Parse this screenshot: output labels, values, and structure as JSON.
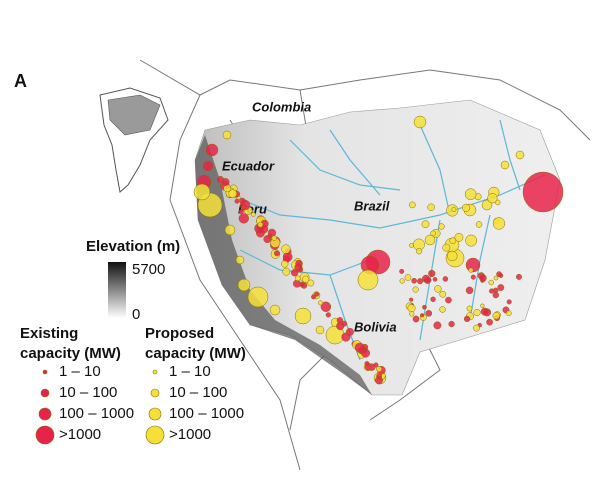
{
  "panel_label": "A",
  "map": {
    "labels": [
      "Colombia",
      "Ecuador",
      "Peru",
      "Brazil",
      "Bolivia"
    ]
  },
  "elevation_legend": {
    "title": "Elevation (m)",
    "max": 5700,
    "min": 0
  },
  "capacity_legend": {
    "existing": {
      "title": [
        "Existing",
        "capacity (MW)"
      ],
      "items": [
        "1 – 10",
        "10 – 100",
        "100 – 1000",
        ">1000"
      ]
    },
    "proposed": {
      "title": [
        "Proposed",
        "capacity (MW)"
      ],
      "items": [
        "1 – 10",
        "10 – 100",
        "100 – 1000",
        ">1000"
      ]
    }
  }
}
